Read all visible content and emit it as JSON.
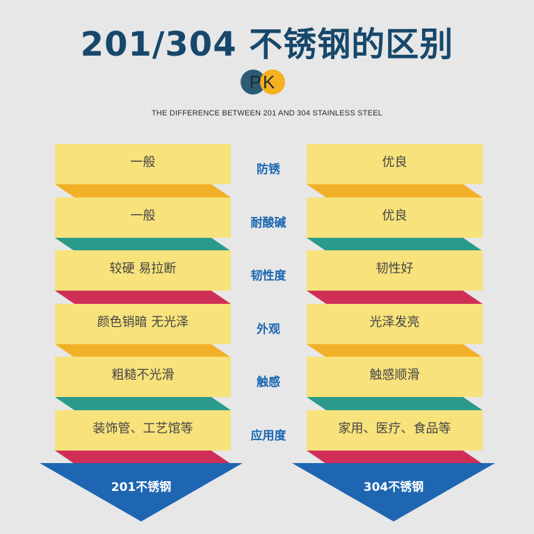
{
  "title": "201/304 不锈钢的区别",
  "pk_label": "PK",
  "subtitle": "THE DIFFERENCE BETWEEN 201 AND 304 STAINLESS STEEL",
  "colors": {
    "card": "#f7e27c",
    "fold_orange": "#f2b028",
    "fold_teal": "#2b9a8a",
    "fold_red": "#cf2f56",
    "arrow_blue": "#1e66b2",
    "label_blue": "#1c67b0",
    "title": "#17486b"
  },
  "rows": [
    {
      "label": "防锈",
      "left": "一般",
      "right": "优良",
      "fold": "orange"
    },
    {
      "label": "耐酸碱",
      "left": "一般",
      "right": "优良",
      "fold": "teal"
    },
    {
      "label": "韧性度",
      "left": "较硬  易拉断",
      "right": "韧性好",
      "fold": "red"
    },
    {
      "label": "外观",
      "left": "颜色销暗  无光泽",
      "right": "光泽发亮",
      "fold": "orange"
    },
    {
      "label": "触感",
      "left": "粗糙不光滑",
      "right": "触感顺滑",
      "fold": "teal"
    },
    {
      "label": "应用度",
      "left": "装饰管、工艺馆等",
      "right": "家用、医疗、食品等",
      "fold": "red"
    }
  ],
  "arrows": {
    "left": "201不锈钢",
    "right": "304不锈钢"
  }
}
